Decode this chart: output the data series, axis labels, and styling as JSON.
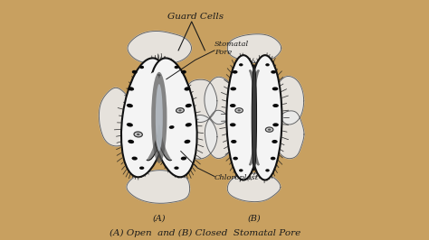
{
  "bg_color": "#c8a060",
  "paper_color": "#dce8f0",
  "title": "(A) Open  and (B) Closed  Stomatal Pore",
  "label_guard_cells": "Guard Cells",
  "label_stomatal_pore": "Stomatal\nPore",
  "label_chloroplast": "Chloroplast",
  "label_A": "(A)",
  "label_B": "(B)",
  "ink": "#1a1a1a",
  "dark_shade": "#2a2a2a",
  "cell_fill": "#f5f5f5",
  "dot_color": "#111111",
  "blob_fill": "#e0e0e0",
  "blob_edge": "#555555"
}
